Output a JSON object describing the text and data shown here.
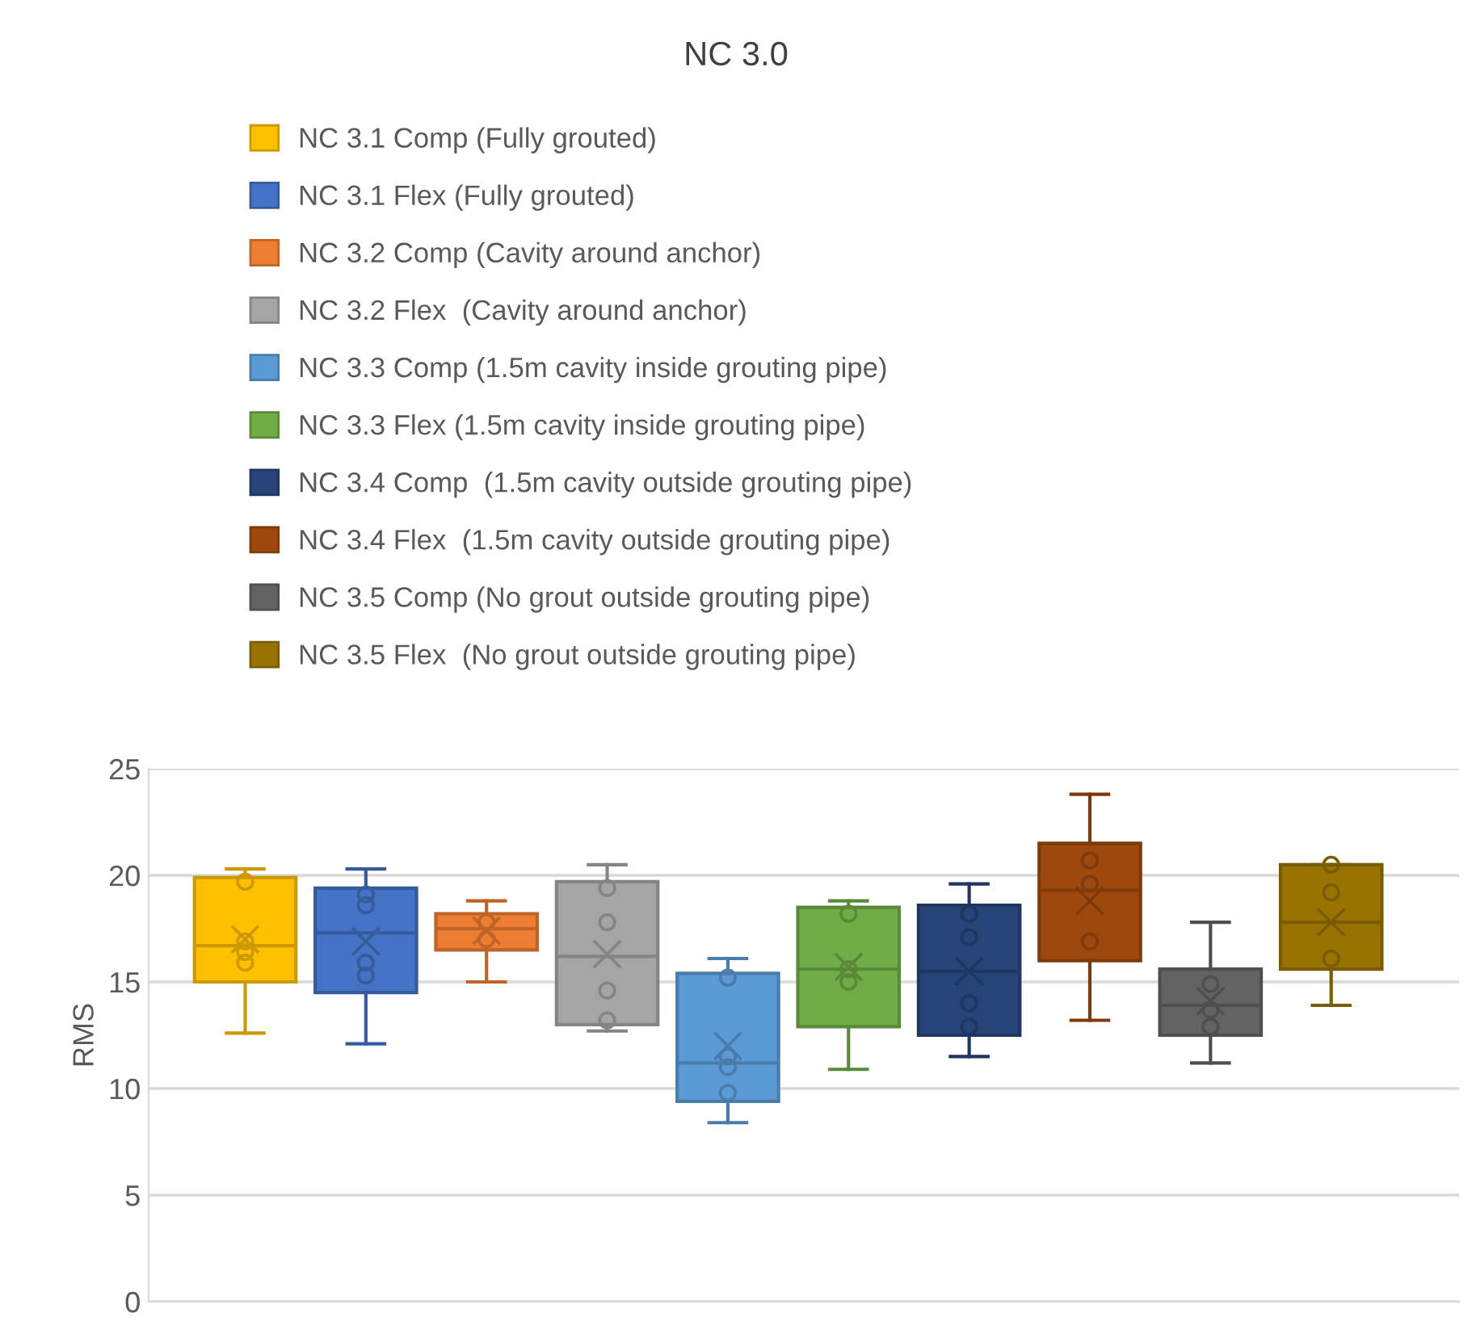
{
  "chart_data": {
    "type": "box",
    "title": "NC 3.0",
    "ylabel": "RMS",
    "categories": [
      null
    ],
    "series": [
      {
        "name": "NC 3.1 Comp (Fully grouted)",
        "color": "#ffc000",
        "boxes": [
          {
            "low": 12.6,
            "q1": 15.0,
            "median": 16.7,
            "q3": 19.9,
            "high": 20.3,
            "mean": 17.0,
            "outliers": [
              19.7,
              16.9,
              16.4,
              15.9
            ]
          }
        ]
      },
      {
        "name": "NC 3.1 Flex (Fully grouted)",
        "color": "#4472c4",
        "boxes": [
          {
            "low": 12.1,
            "q1": 14.5,
            "median": 17.3,
            "q3": 19.4,
            "high": 20.3,
            "mean": 16.9,
            "outliers": [
              19.1,
              18.6,
              15.9,
              15.3
            ]
          }
        ]
      },
      {
        "name": "NC 3.2 Comp (Cavity around anchor)",
        "color": "#ed7d31",
        "boxes": [
          {
            "low": 15.0,
            "q1": 16.5,
            "median": 17.5,
            "q3": 18.2,
            "high": 18.8,
            "mean": 17.4,
            "outliers": [
              17.8,
              17.0
            ]
          }
        ]
      },
      {
        "name": "NC 3.2 Flex  (Cavity around anchor)",
        "color": "#a5a5a5",
        "boxes": [
          {
            "low": 12.7,
            "q1": 13.0,
            "median": 16.2,
            "q3": 19.7,
            "high": 20.5,
            "mean": 16.3,
            "outliers": [
              19.4,
              17.8,
              14.6,
              13.2
            ]
          }
        ]
      },
      {
        "name": "NC 3.3 Comp (1.5m cavity inside grouting pipe)",
        "color": "#5b9bd5",
        "boxes": [
          {
            "low": 8.4,
            "q1": 9.4,
            "median": 11.2,
            "q3": 15.4,
            "high": 16.1,
            "mean": 12.0,
            "outliers": [
              15.2,
              11.5,
              11.0,
              9.8
            ]
          }
        ]
      },
      {
        "name": "NC 3.3 Flex (1.5m cavity inside grouting pipe)",
        "color": "#70ad47",
        "boxes": [
          {
            "low": 10.9,
            "q1": 12.9,
            "median": 15.6,
            "q3": 18.5,
            "high": 18.8,
            "mean": 15.7,
            "outliers": [
              18.2,
              15.6,
              15.0
            ]
          }
        ]
      },
      {
        "name": "NC 3.4 Comp  (1.5m cavity outside grouting pipe)",
        "color": "#264478",
        "boxes": [
          {
            "low": 11.5,
            "q1": 12.5,
            "median": 15.5,
            "q3": 18.6,
            "high": 19.6,
            "mean": 15.5,
            "outliers": [
              18.2,
              17.1,
              14.0,
              12.9
            ]
          }
        ]
      },
      {
        "name": "NC 3.4 Flex  (1.5m cavity outside grouting pipe)",
        "color": "#9e480e",
        "boxes": [
          {
            "low": 13.2,
            "q1": 16.0,
            "median": 19.3,
            "q3": 21.5,
            "high": 23.8,
            "mean": 18.8,
            "outliers": [
              20.7,
              19.6,
              16.9
            ]
          }
        ]
      },
      {
        "name": "NC 3.5 Comp (No grout outside grouting pipe)",
        "color": "#636363",
        "boxes": [
          {
            "low": 11.2,
            "q1": 12.5,
            "median": 13.9,
            "q3": 15.6,
            "high": 17.8,
            "mean": 14.1,
            "outliers": [
              14.9,
              13.7,
              12.9
            ]
          }
        ]
      },
      {
        "name": "NC 3.5 Flex  (No grout outside grouting pipe)",
        "color": "#997300",
        "boxes": [
          {
            "low": 13.9,
            "q1": 15.6,
            "median": 17.8,
            "q3": 20.5,
            "high": 20.5,
            "mean": 17.8,
            "outliers": [
              20.5,
              19.2,
              16.1
            ]
          }
        ]
      }
    ],
    "ylim": [
      0,
      25
    ],
    "yticks": [
      0,
      5,
      10,
      15,
      20,
      25
    ],
    "grid": "y",
    "legend": "top",
    "tick_labels": "y"
  }
}
